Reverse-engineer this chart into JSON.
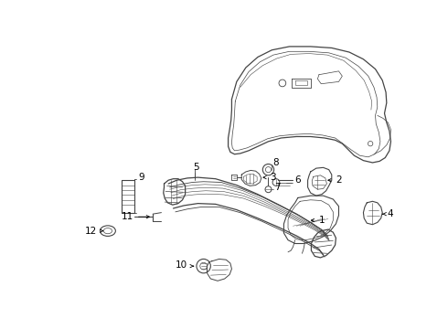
{
  "bg_color": "#ffffff",
  "line_color": "#444444",
  "label_color": "#000000",
  "label_fontsize": 7.5,
  "fig_width": 4.9,
  "fig_height": 3.6,
  "dpi": 100
}
